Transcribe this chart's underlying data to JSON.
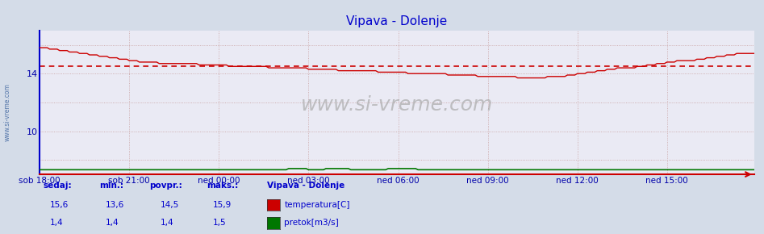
{
  "title": "Vipava - Dolenje",
  "title_color": "#0000cc",
  "bg_color": "#d4dce8",
  "plot_bg_color": "#eaeaf4",
  "grid_color": "#c8a0a0",
  "xlabel_color": "#0000aa",
  "ylabel_color": "#0000aa",
  "watermark": "www.si-vreme.com",
  "x_tick_labels": [
    "sob 18:00",
    "sob 21:00",
    "ned 00:00",
    "ned 03:00",
    "ned 06:00",
    "ned 09:00",
    "ned 12:00",
    "ned 15:00"
  ],
  "x_tick_positions": [
    0,
    36,
    72,
    108,
    144,
    180,
    216,
    252
  ],
  "total_points": 288,
  "ylim": [
    7,
    17
  ],
  "yticks": [
    8,
    10,
    12,
    14,
    16
  ],
  "yticklabels": [
    "",
    "10",
    "",
    "14",
    ""
  ],
  "temp_color": "#cc0000",
  "flow_color": "#007700",
  "dashed_line_value": 14.5,
  "dashed_line_color": "#cc0000",
  "left_label": "www.si-vreme.com",
  "footer_label_color": "#0000cc",
  "sedaj": "15,6",
  "min_val": "13,6",
  "povpr": "14,5",
  "maks": "15,9",
  "sedaj_flow": "1,4",
  "min_flow": "1,4",
  "povpr_flow": "1,4",
  "maks_flow": "1,5",
  "spine_left_color": "#0000cc",
  "spine_bottom_color": "#cc0000"
}
